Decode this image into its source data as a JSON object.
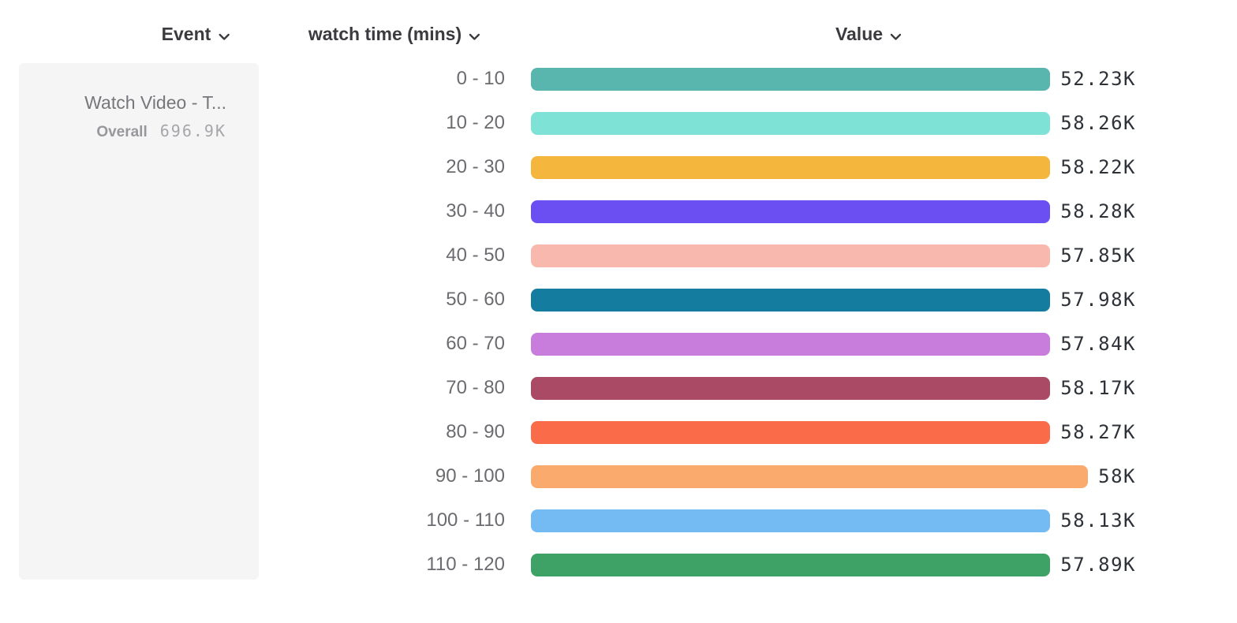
{
  "header": {
    "event_label": "Event",
    "breakdown_label": "watch time (mins)",
    "value_label": "Value"
  },
  "event_card": {
    "title": "Watch Video - T...",
    "overall_label": "Overall",
    "overall_value": "696.9K"
  },
  "chart_data": {
    "type": "bar",
    "orientation": "horizontal",
    "title": "",
    "xlabel": "Value",
    "ylabel": "watch time (mins)",
    "xlim": [
      0,
      58.28
    ],
    "unit": "K",
    "categories": [
      "0 - 10",
      "10 - 20",
      "20 - 30",
      "30 - 40",
      "40 - 50",
      "50 - 60",
      "60 - 70",
      "70 - 80",
      "80 - 90",
      "90 - 100",
      "100 - 110",
      "110 - 120"
    ],
    "values": [
      52.23,
      58.26,
      58.22,
      58.28,
      57.85,
      57.98,
      57.84,
      58.17,
      58.27,
      58.0,
      58.13,
      57.89
    ],
    "value_labels": [
      "52.23K",
      "58.26K",
      "58.22K",
      "58.28K",
      "57.85K",
      "57.98K",
      "57.84K",
      "58.17K",
      "58.27K",
      "58K",
      "58.13K",
      "57.89K"
    ],
    "colors": [
      "#58b6ae",
      "#7ee2d6",
      "#f5b63e",
      "#6b4ff2",
      "#f9b8ae",
      "#147d9f",
      "#c87ddd",
      "#ab4a64",
      "#fa6b4a",
      "#fbaa6d",
      "#74baf3",
      "#3ea266"
    ],
    "legend": null,
    "grid": false
  },
  "ui_colors": {
    "header_text": "#3a3a3f",
    "category_text": "#6b6b70",
    "value_text": "#2d3138",
    "card_background": "#f5f5f6",
    "card_title_text": "#76767b"
  }
}
